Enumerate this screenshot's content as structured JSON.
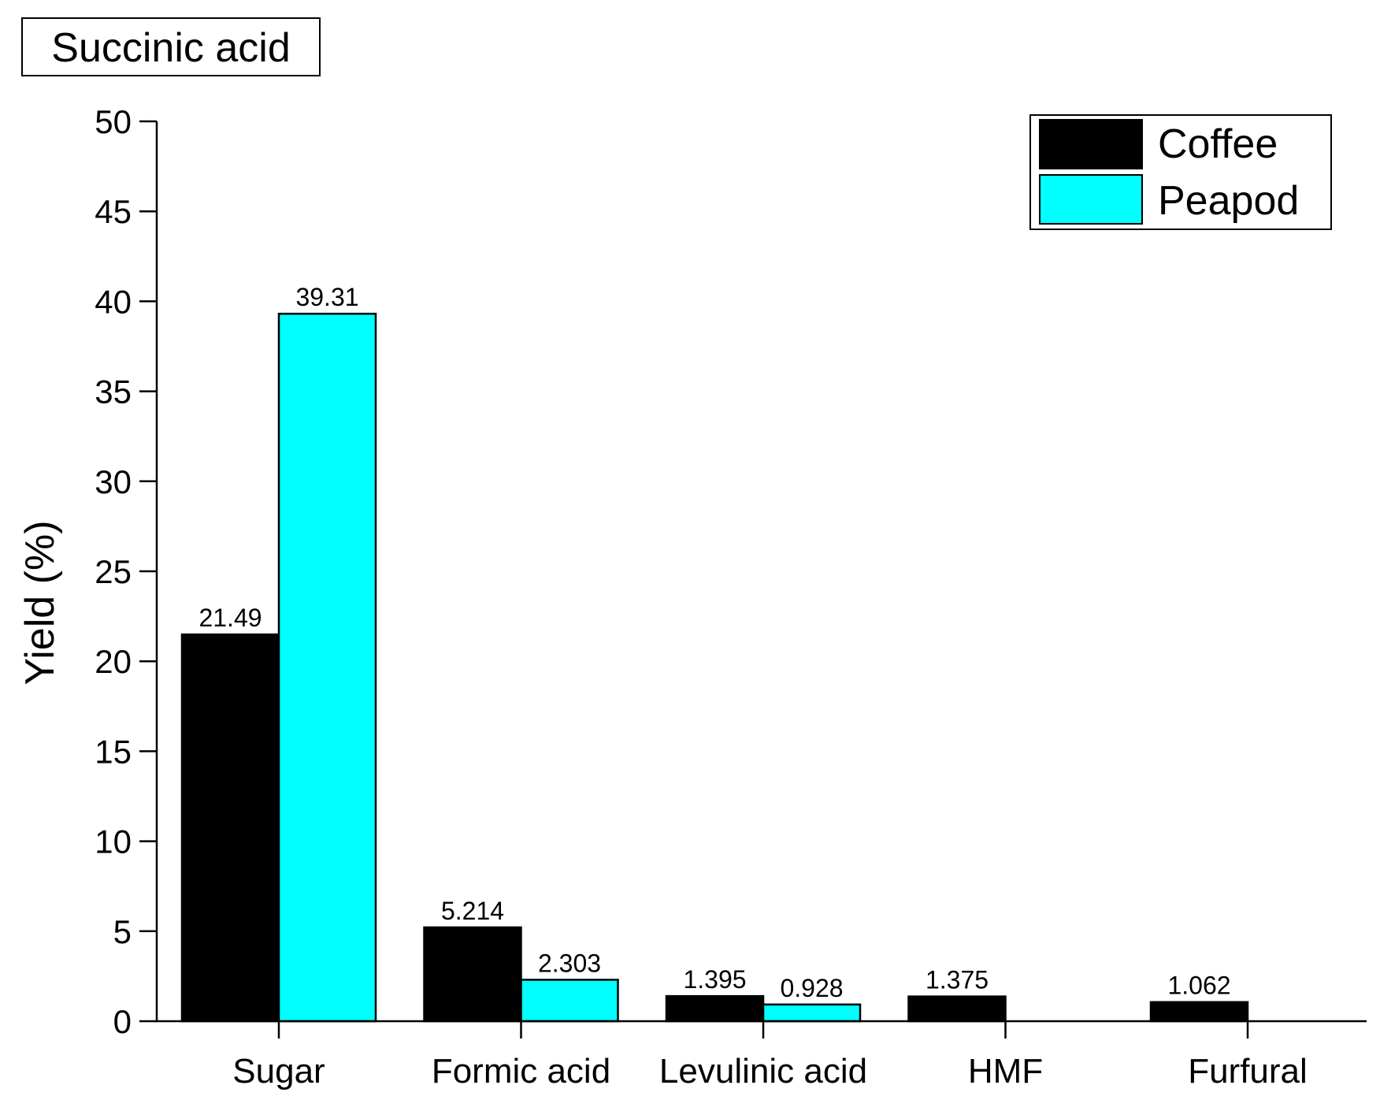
{
  "chart_data": {
    "type": "bar",
    "title": "Succinic acid",
    "xlabel": "",
    "ylabel": "Yield (%)",
    "ylim": [
      0,
      50
    ],
    "yticks": [
      0,
      5,
      10,
      15,
      20,
      25,
      30,
      35,
      40,
      45,
      50
    ],
    "categories": [
      "Sugar",
      "Formic acid",
      "Levulinic acid",
      "HMF",
      "Furfural"
    ],
    "series": [
      {
        "name": "Coffee",
        "color": "#000000",
        "values": [
          21.49,
          5.214,
          1.395,
          1.375,
          1.062
        ],
        "labels": [
          "21.49",
          "5.214",
          "1.395",
          "1.375",
          "1.062"
        ]
      },
      {
        "name": "Peapod",
        "color": "#00ffff",
        "values": [
          39.31,
          2.303,
          0.928,
          null,
          null
        ],
        "labels": [
          "39.31",
          "2.303",
          "0.928",
          null,
          null
        ]
      }
    ],
    "legend_position": "top-right",
    "grid": false
  }
}
